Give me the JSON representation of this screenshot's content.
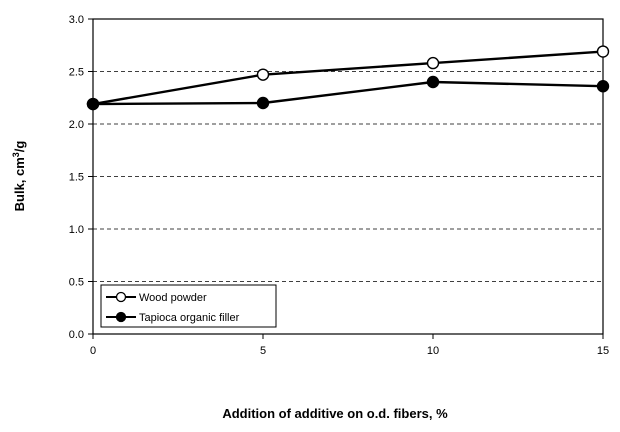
{
  "chart_data": {
    "type": "line",
    "x": [
      0,
      5,
      10,
      15
    ],
    "series": [
      {
        "name": "Wood powder",
        "values": [
          2.19,
          2.47,
          2.58,
          2.69
        ],
        "marker": "open-circle",
        "color": "#000000"
      },
      {
        "name": "Tapioca organic filler",
        "values": [
          2.19,
          2.2,
          2.4,
          2.36
        ],
        "marker": "filled-circle",
        "color": "#000000"
      }
    ],
    "xlabel": "Addition  of additive  on o.d. fibers,  %",
    "ylabel_main": "Bulk,  cm",
    "ylabel_sup": "3",
    "ylabel_tail": "/g",
    "xlim": [
      0,
      15
    ],
    "ylim": [
      0,
      3.0
    ],
    "xticks": [
      "0",
      "5",
      "10",
      "15"
    ],
    "yticks": [
      "0.0",
      "0.5",
      "1.0",
      "1.5",
      "2.0",
      "2.5",
      "3.0"
    ],
    "grid": "horizontal dashed",
    "legend_position": "bottom-left"
  }
}
